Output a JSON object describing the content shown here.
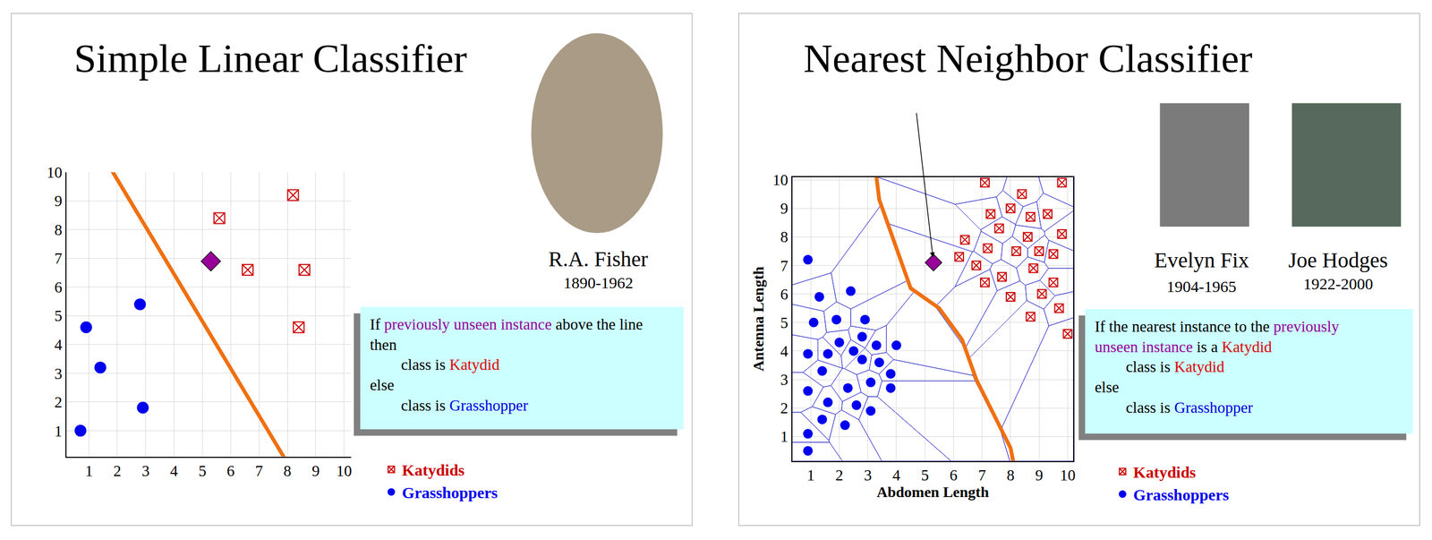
{
  "chart_data": [
    {
      "type": "scatter",
      "title": "Simple Linear Classifier",
      "person": [
        {
          "name": "R.A. Fisher",
          "years": "1890-1962"
        }
      ],
      "xlim": [
        0.2,
        10.25
      ],
      "ylim": [
        0.1,
        10
      ],
      "xticks": [
        1,
        2,
        3,
        4,
        5,
        6,
        7,
        8,
        9,
        10
      ],
      "yticks": [
        1,
        2,
        3,
        4,
        5,
        6,
        7,
        8,
        9,
        10
      ],
      "grid": true,
      "legend": "right",
      "series": [
        {
          "name": "Katydids",
          "color": "#cc0000",
          "marker": "square",
          "x": [
            5.6,
            8.2,
            6.6,
            8.6,
            8.4
          ],
          "y": [
            8.4,
            9.2,
            6.6,
            6.6,
            4.6
          ]
        },
        {
          "name": "Grasshoppers",
          "color": "#0000ee",
          "marker": "circle",
          "x": [
            0.9,
            1.4,
            0.7,
            2.9,
            2.8
          ],
          "y": [
            4.6,
            3.2,
            1.0,
            1.8,
            5.4
          ]
        }
      ],
      "unseen": {
        "x": [
          5.3
        ],
        "y": [
          6.9
        ],
        "color": "#990099",
        "marker": "diamond"
      },
      "boundary": {
        "x": [
          1.6,
          7.95
        ],
        "y": [
          10.4,
          -0.04
        ],
        "color": "#f07010"
      },
      "rule": [
        {
          "text": [
            {
              "text": "If "
            },
            {
              "text": "previously unseen instance",
              "color": "#990099"
            },
            {
              "text": " above the line"
            }
          ]
        },
        {
          "text": [
            {
              "text": "then"
            }
          ]
        },
        {
          "indent": true,
          "text": [
            {
              "text": "class is "
            },
            {
              "text": "Katydid",
              "color": "#e00000"
            }
          ]
        },
        {
          "text": [
            {
              "text": "else"
            }
          ]
        },
        {
          "indent": true,
          "text": [
            {
              "text": "class is "
            },
            {
              "text": "Grasshopper",
              "color": "#0000dd"
            }
          ]
        }
      ]
    },
    {
      "type": "voronoi",
      "title": "Nearest Neighbor Classifier",
      "person": [
        {
          "name": "Evelyn Fix",
          "years": "1904-1965"
        },
        {
          "name": "Joe Hodges",
          "years": "1922-2000"
        }
      ],
      "xlabel": "Abdomen Length",
      "ylabel": "Antenna Length",
      "xlim": [
        0.35,
        10.2
      ],
      "ylim": [
        0.15,
        10.1
      ],
      "xticks": [
        1,
        2,
        3,
        4,
        5,
        6,
        7,
        8,
        9,
        10
      ],
      "yticks": [
        1,
        2,
        3,
        4,
        5,
        6,
        7,
        8,
        9,
        10
      ],
      "grid": true,
      "legend": "right",
      "series": [
        {
          "name": "Katydids",
          "color": "#cc0000",
          "marker": "square",
          "x": [
            7.1,
            8.4,
            9.8,
            7.3,
            8.0,
            8.7,
            9.3,
            6.4,
            7.2,
            7.6,
            8.6,
            9.8,
            6.2,
            6.8,
            8.2,
            9.0,
            9.5,
            8.8,
            7.1,
            7.7,
            9.5,
            8.0,
            9.1,
            8.7,
            9.7,
            10.0
          ],
          "y": [
            9.9,
            9.5,
            9.9,
            8.8,
            9.0,
            8.7,
            8.8,
            7.9,
            7.6,
            8.3,
            8.0,
            8.1,
            7.3,
            7.0,
            7.5,
            7.5,
            7.4,
            6.9,
            6.4,
            6.6,
            6.4,
            5.9,
            6.0,
            5.2,
            5.5,
            4.6
          ]
        },
        {
          "name": "Grasshoppers",
          "color": "#0000ee",
          "marker": "circle",
          "x": [
            0.9,
            1.3,
            2.4,
            1.1,
            1.9,
            2.9,
            0.9,
            1.6,
            2.0,
            2.5,
            2.8,
            3.3,
            4.0,
            1.4,
            2.8,
            3.4,
            3.8,
            0.9,
            2.3,
            3.1,
            3.8,
            1.6,
            2.6,
            3.1,
            1.4,
            2.2,
            0.9,
            0.9
          ],
          "y": [
            7.2,
            5.9,
            6.1,
            5.0,
            5.1,
            5.1,
            3.9,
            3.9,
            4.3,
            4.0,
            4.5,
            4.2,
            4.2,
            3.3,
            3.7,
            3.6,
            3.2,
            2.6,
            2.7,
            2.9,
            2.7,
            2.2,
            2.1,
            1.9,
            1.6,
            1.4,
            1.1,
            0.5
          ]
        }
      ],
      "unseen": {
        "x": [
          5.3
        ],
        "y": [
          7.1
        ],
        "color": "#990099",
        "marker": "diamond"
      },
      "boundary": {
        "x": [
          3.3,
          3.4,
          4.5,
          5.5,
          6.3,
          6.8,
          8.0,
          8.1
        ],
        "y": [
          10.1,
          9.3,
          6.2,
          5.5,
          4.4,
          3.0,
          0.6,
          0.1
        ],
        "color": "#f07010"
      },
      "rule": [
        {
          "text": [
            {
              "text": "If the nearest instance to the "
            },
            {
              "text": "previously",
              "color": "#990099"
            }
          ]
        },
        {
          "text": [
            {
              "text": "unseen instance",
              "color": "#990099"
            },
            {
              "text": " is a "
            },
            {
              "text": "Katydid",
              "color": "#e00000"
            }
          ]
        },
        {
          "indent": true,
          "text": [
            {
              "text": "class is "
            },
            {
              "text": "Katydid",
              "color": "#e00000"
            }
          ]
        },
        {
          "text": [
            {
              "text": "else"
            }
          ]
        },
        {
          "indent": true,
          "text": [
            {
              "text": "class is "
            },
            {
              "text": "Grasshopper",
              "color": "#0000dd"
            }
          ]
        }
      ]
    }
  ]
}
